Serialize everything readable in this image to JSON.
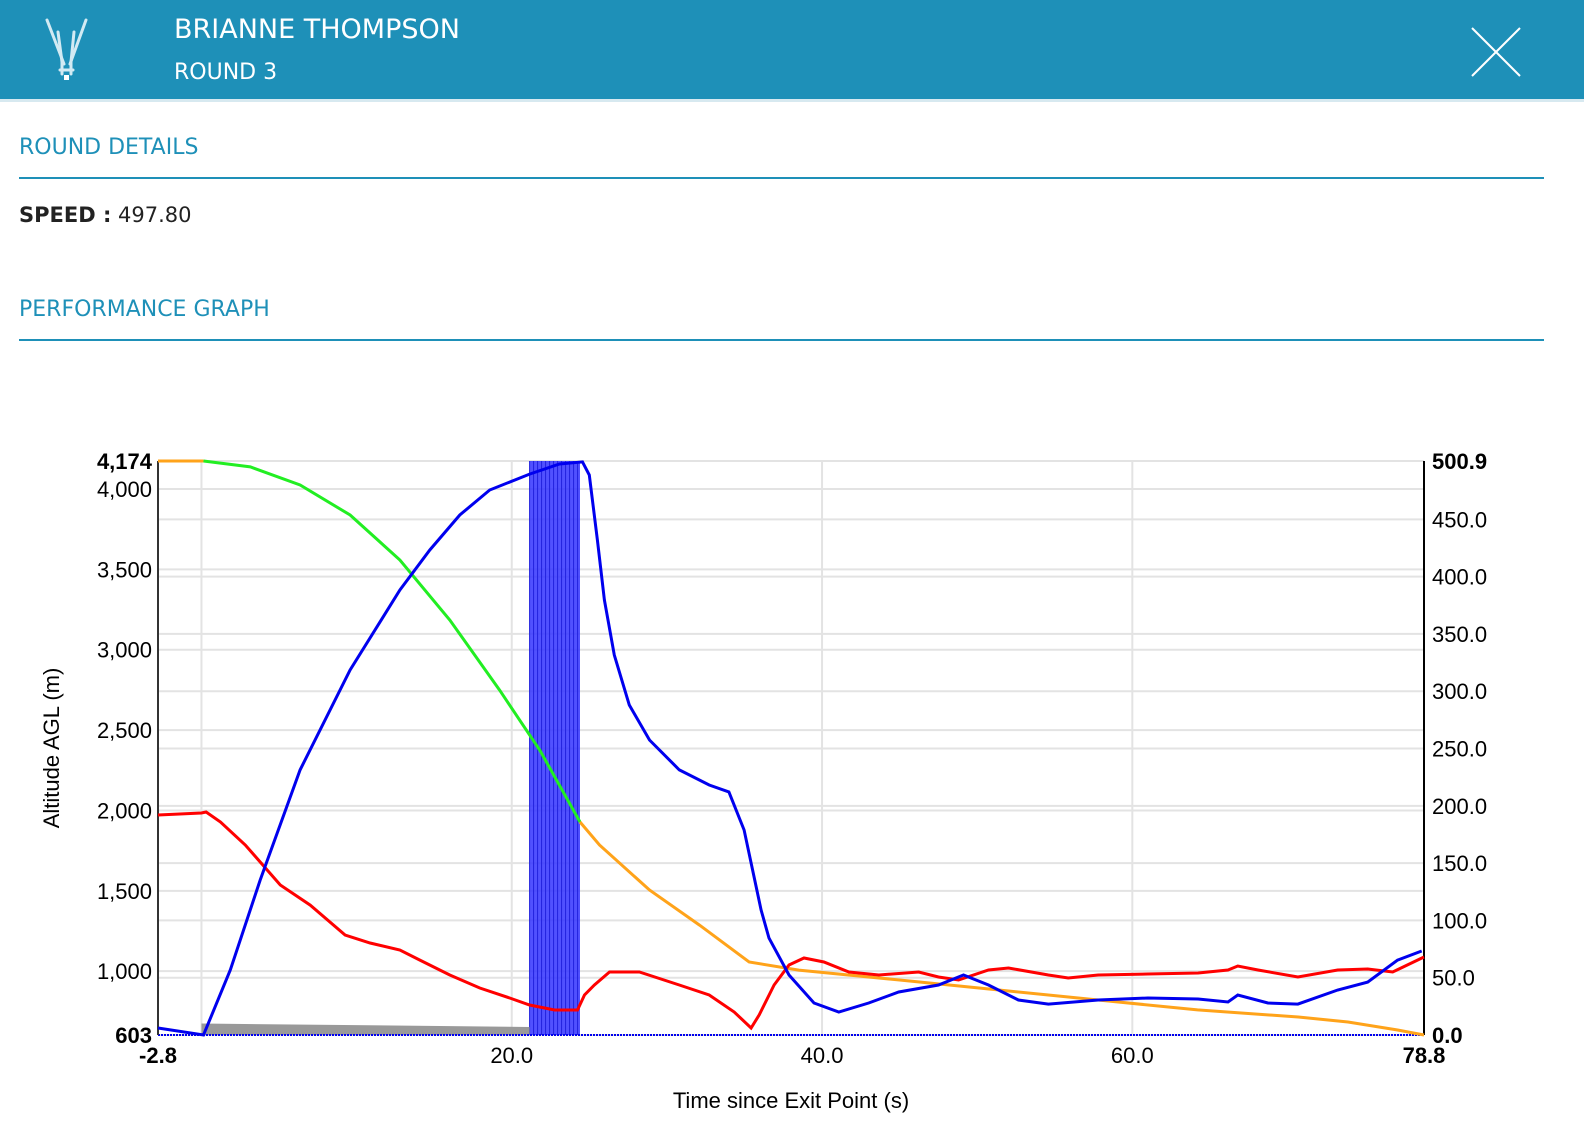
{
  "header": {
    "name": "BRIANNE THOMPSON",
    "subtitle": "ROUND 3"
  },
  "round_details": {
    "title": "ROUND DETAILS",
    "speed_label": "SPEED :",
    "speed_value": "497.80"
  },
  "performance": {
    "title": "PERFORMANCE GRAPH"
  },
  "colors": {
    "brand": "#1e90b8",
    "altitude": "#ffa31a",
    "altitude_window": "#22ee22",
    "speed": "#0000ee",
    "red_series": "#ff0000",
    "window_band": "#3333ff"
  },
  "chart_data": {
    "type": "line",
    "xlabel": "Time since Exit Point (s)",
    "ylabel": "Altitude AGL (m)",
    "xlim": [
      -2.8,
      78.8
    ],
    "ylim_left": [
      603,
      4174
    ],
    "ylim_right": [
      0,
      500.9
    ],
    "x_ticks": [
      "-2.8",
      "20.0",
      "40.0",
      "60.0",
      "78.8"
    ],
    "x_tick_values": [
      -2.8,
      20,
      40,
      60,
      78.8
    ],
    "x_grid": [
      0,
      20,
      40,
      60
    ],
    "left_ticks": [
      "4,174",
      "4,000",
      "3,500",
      "3,000",
      "2,500",
      "2,000",
      "1,500",
      "1,000",
      "603"
    ],
    "left_tick_values": [
      4174,
      4000,
      3500,
      3000,
      2500,
      2000,
      1500,
      1000,
      603
    ],
    "right_ticks": [
      "500.9",
      "450.0",
      "400.0",
      "350.0",
      "300.0",
      "250.0",
      "200.0",
      "150.0",
      "100.0",
      "50.0",
      "0.0"
    ],
    "right_tick_values": [
      500.9,
      450,
      400,
      350,
      300,
      250,
      200,
      150,
      100,
      50,
      0
    ],
    "grid": true,
    "highlight_window": [
      0,
      24.4
    ],
    "speed_window": [
      21.15,
      24.4
    ],
    "series": [
      {
        "name": "altitude",
        "axis": "left",
        "points": [
          [
            -2.8,
            4174
          ],
          [
            0.13,
            4174
          ],
          [
            3.15,
            4137
          ],
          [
            6.36,
            4025
          ],
          [
            9.58,
            3838
          ],
          [
            12.79,
            3558
          ],
          [
            16.01,
            3185
          ],
          [
            19.22,
            2749
          ],
          [
            21.8,
            2376
          ],
          [
            24.4,
            1928
          ],
          [
            25.66,
            1785
          ],
          [
            28.88,
            1505
          ],
          [
            32.1,
            1287
          ],
          [
            35.3,
            1057
          ],
          [
            38.5,
            1007
          ],
          [
            41.7,
            976
          ],
          [
            45.0,
            945
          ],
          [
            51.4,
            883
          ],
          [
            57.8,
            821
          ],
          [
            64.2,
            759
          ],
          [
            70.7,
            715
          ],
          [
            73.9,
            684
          ],
          [
            77.1,
            634
          ],
          [
            78.8,
            603
          ]
        ]
      },
      {
        "name": "speed",
        "axis": "right",
        "points": [
          [
            -2.8,
            6.1
          ],
          [
            0.13,
            0
          ],
          [
            1.86,
            56.7
          ],
          [
            3.79,
            135.3
          ],
          [
            6.36,
            231.3
          ],
          [
            9.58,
            318.5
          ],
          [
            12.79,
            388.3
          ],
          [
            14.72,
            423.2
          ],
          [
            16.65,
            453.8
          ],
          [
            18.58,
            475.6
          ],
          [
            21.15,
            489.5
          ],
          [
            23.08,
            498.3
          ],
          [
            24.56,
            500.1
          ],
          [
            25.0,
            488.7
          ],
          [
            25.52,
            431.9
          ],
          [
            25.97,
            379.6
          ],
          [
            26.61,
            331.6
          ],
          [
            27.58,
            288
          ],
          [
            28.88,
            257.4
          ],
          [
            30.8,
            231.3
          ],
          [
            32.73,
            218.2
          ],
          [
            34.0,
            212.1
          ],
          [
            34.98,
            178.9
          ],
          [
            36.07,
            109.1
          ],
          [
            36.58,
            84.6
          ],
          [
            37.87,
            52.4
          ],
          [
            39.48,
            27.9
          ],
          [
            41.08,
            20.1
          ],
          [
            43.01,
            27.9
          ],
          [
            44.94,
            37.5
          ],
          [
            47.51,
            43.6
          ],
          [
            49.12,
            52.4
          ],
          [
            50.73,
            43.6
          ],
          [
            52.66,
            30.5
          ],
          [
            54.59,
            27
          ],
          [
            57.8,
            30.5
          ],
          [
            61.0,
            32.3
          ],
          [
            64.24,
            31.4
          ],
          [
            66.17,
            28.8
          ],
          [
            66.8,
            34.9
          ],
          [
            68.74,
            27.9
          ],
          [
            70.67,
            27
          ],
          [
            73.24,
            39.3
          ],
          [
            75.17,
            46.2
          ],
          [
            77.1,
            65.4
          ],
          [
            78.65,
            73.3
          ]
        ]
      },
      {
        "name": "red",
        "axis": "right",
        "points": [
          [
            -2.8,
            192
          ],
          [
            0,
            193.7
          ],
          [
            0.3,
            194.6
          ],
          [
            1.23,
            185.9
          ],
          [
            2.83,
            165.8
          ],
          [
            5.08,
            130.9
          ],
          [
            7.01,
            113.4
          ],
          [
            9.26,
            87.3
          ],
          [
            10.87,
            80.3
          ],
          [
            12.79,
            74.2
          ],
          [
            14.08,
            65.4
          ],
          [
            16.01,
            52.4
          ],
          [
            17.94,
            41
          ],
          [
            19.87,
            32.3
          ],
          [
            21.15,
            26.2
          ],
          [
            22.76,
            21.8
          ],
          [
            24.24,
            21.8
          ],
          [
            24.69,
            34.9
          ],
          [
            25.33,
            43.6
          ],
          [
            26.3,
            55
          ],
          [
            28.23,
            55
          ],
          [
            30.8,
            43.6
          ],
          [
            32.73,
            34.9
          ],
          [
            34.34,
            20.1
          ],
          [
            35.43,
            6.1
          ],
          [
            35.95,
            17.5
          ],
          [
            36.91,
            43.6
          ],
          [
            37.87,
            61.1
          ],
          [
            38.84,
            67.2
          ],
          [
            40.12,
            63.7
          ],
          [
            41.73,
            55
          ],
          [
            43.66,
            52.4
          ],
          [
            46.23,
            55
          ],
          [
            47.51,
            50.6
          ],
          [
            48.8,
            48
          ],
          [
            50.73,
            56.7
          ],
          [
            52.02,
            58.5
          ],
          [
            54.59,
            52.4
          ],
          [
            55.87,
            49.7
          ],
          [
            57.8,
            52.4
          ],
          [
            61.0,
            53.2
          ],
          [
            64.24,
            54.1
          ],
          [
            66.17,
            56.7
          ],
          [
            66.8,
            60.2
          ],
          [
            68.1,
            56.7
          ],
          [
            70.67,
            50.6
          ],
          [
            73.24,
            56.7
          ],
          [
            75.17,
            57.6
          ],
          [
            76.78,
            55
          ],
          [
            78.8,
            68.1
          ]
        ]
      },
      {
        "name": "grey-area",
        "axis": "right",
        "points": [
          [
            0,
            10
          ],
          [
            21.15,
            7
          ]
        ]
      }
    ]
  }
}
